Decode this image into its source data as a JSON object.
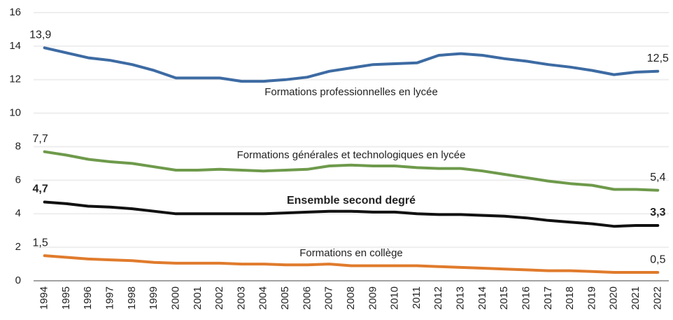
{
  "chart_data": {
    "type": "line",
    "categories": [
      "1994",
      "1995",
      "1996",
      "1997",
      "1998",
      "1999",
      "2000",
      "2001",
      "2002",
      "2003",
      "2004",
      "2005",
      "2006",
      "2007",
      "2008",
      "2009",
      "2010",
      "2011",
      "2012",
      "2013",
      "2014",
      "2015",
      "2016",
      "2017",
      "2018",
      "2019",
      "2020",
      "2021",
      "2022"
    ],
    "ylim": [
      0,
      16
    ],
    "yticks": [
      0,
      2,
      4,
      6,
      8,
      10,
      12,
      14,
      16
    ],
    "grid": true,
    "series": [
      {
        "name": "Formations professionnelles en lycée",
        "color": "#3d6ba3",
        "values": [
          13.9,
          13.6,
          13.3,
          13.15,
          12.9,
          12.55,
          12.1,
          12.1,
          12.1,
          11.9,
          11.9,
          12.0,
          12.15,
          12.5,
          12.7,
          12.9,
          12.95,
          13.0,
          13.45,
          13.55,
          13.45,
          13.25,
          13.1,
          12.9,
          12.75,
          12.55,
          12.3,
          12.45,
          12.5
        ],
        "value_labels": [
          "13,9",
          null,
          null,
          null,
          null,
          null,
          null,
          null,
          null,
          null,
          null,
          null,
          null,
          null,
          null,
          null,
          null,
          null,
          null,
          null,
          null,
          null,
          null,
          null,
          null,
          null,
          null,
          null,
          "12,5"
        ]
      },
      {
        "name": "Formations générales et technologiques en lycée",
        "color": "#6e9a4b",
        "values": [
          7.7,
          7.5,
          7.25,
          7.1,
          7.0,
          6.8,
          6.6,
          6.6,
          6.65,
          6.6,
          6.55,
          6.6,
          6.65,
          6.85,
          6.9,
          6.85,
          6.85,
          6.75,
          6.7,
          6.7,
          6.55,
          6.35,
          6.15,
          5.95,
          5.8,
          5.7,
          5.45,
          5.45,
          5.4
        ],
        "value_labels": [
          "7,7",
          null,
          null,
          null,
          null,
          null,
          null,
          null,
          null,
          null,
          null,
          null,
          null,
          null,
          null,
          null,
          null,
          null,
          null,
          null,
          null,
          null,
          null,
          null,
          null,
          null,
          null,
          null,
          "5,4"
        ]
      },
      {
        "name": "Ensemble second degré",
        "color": "#111111",
        "values": [
          4.7,
          4.6,
          4.45,
          4.4,
          4.3,
          4.15,
          4.0,
          4.0,
          4.0,
          4.0,
          4.0,
          4.05,
          4.1,
          4.15,
          4.15,
          4.1,
          4.1,
          4.0,
          3.95,
          3.95,
          3.9,
          3.85,
          3.75,
          3.6,
          3.5,
          3.4,
          3.25,
          3.3,
          3.3
        ],
        "value_labels": [
          "4,7",
          null,
          null,
          null,
          null,
          null,
          null,
          null,
          null,
          null,
          null,
          null,
          null,
          null,
          null,
          null,
          null,
          null,
          null,
          null,
          null,
          null,
          null,
          null,
          null,
          null,
          null,
          null,
          "3,3"
        ]
      },
      {
        "name": "Formations en collège",
        "color": "#e07b2c",
        "values": [
          1.5,
          1.4,
          1.3,
          1.25,
          1.2,
          1.1,
          1.05,
          1.05,
          1.05,
          1.0,
          1.0,
          0.95,
          0.95,
          1.0,
          0.9,
          0.9,
          0.9,
          0.9,
          0.85,
          0.8,
          0.75,
          0.7,
          0.65,
          0.6,
          0.6,
          0.55,
          0.5,
          0.5,
          0.5
        ],
        "value_labels": [
          "1,5",
          null,
          null,
          null,
          null,
          null,
          null,
          null,
          null,
          null,
          null,
          null,
          null,
          null,
          null,
          null,
          null,
          null,
          null,
          null,
          null,
          null,
          null,
          null,
          null,
          null,
          null,
          null,
          "0,5"
        ]
      }
    ]
  }
}
